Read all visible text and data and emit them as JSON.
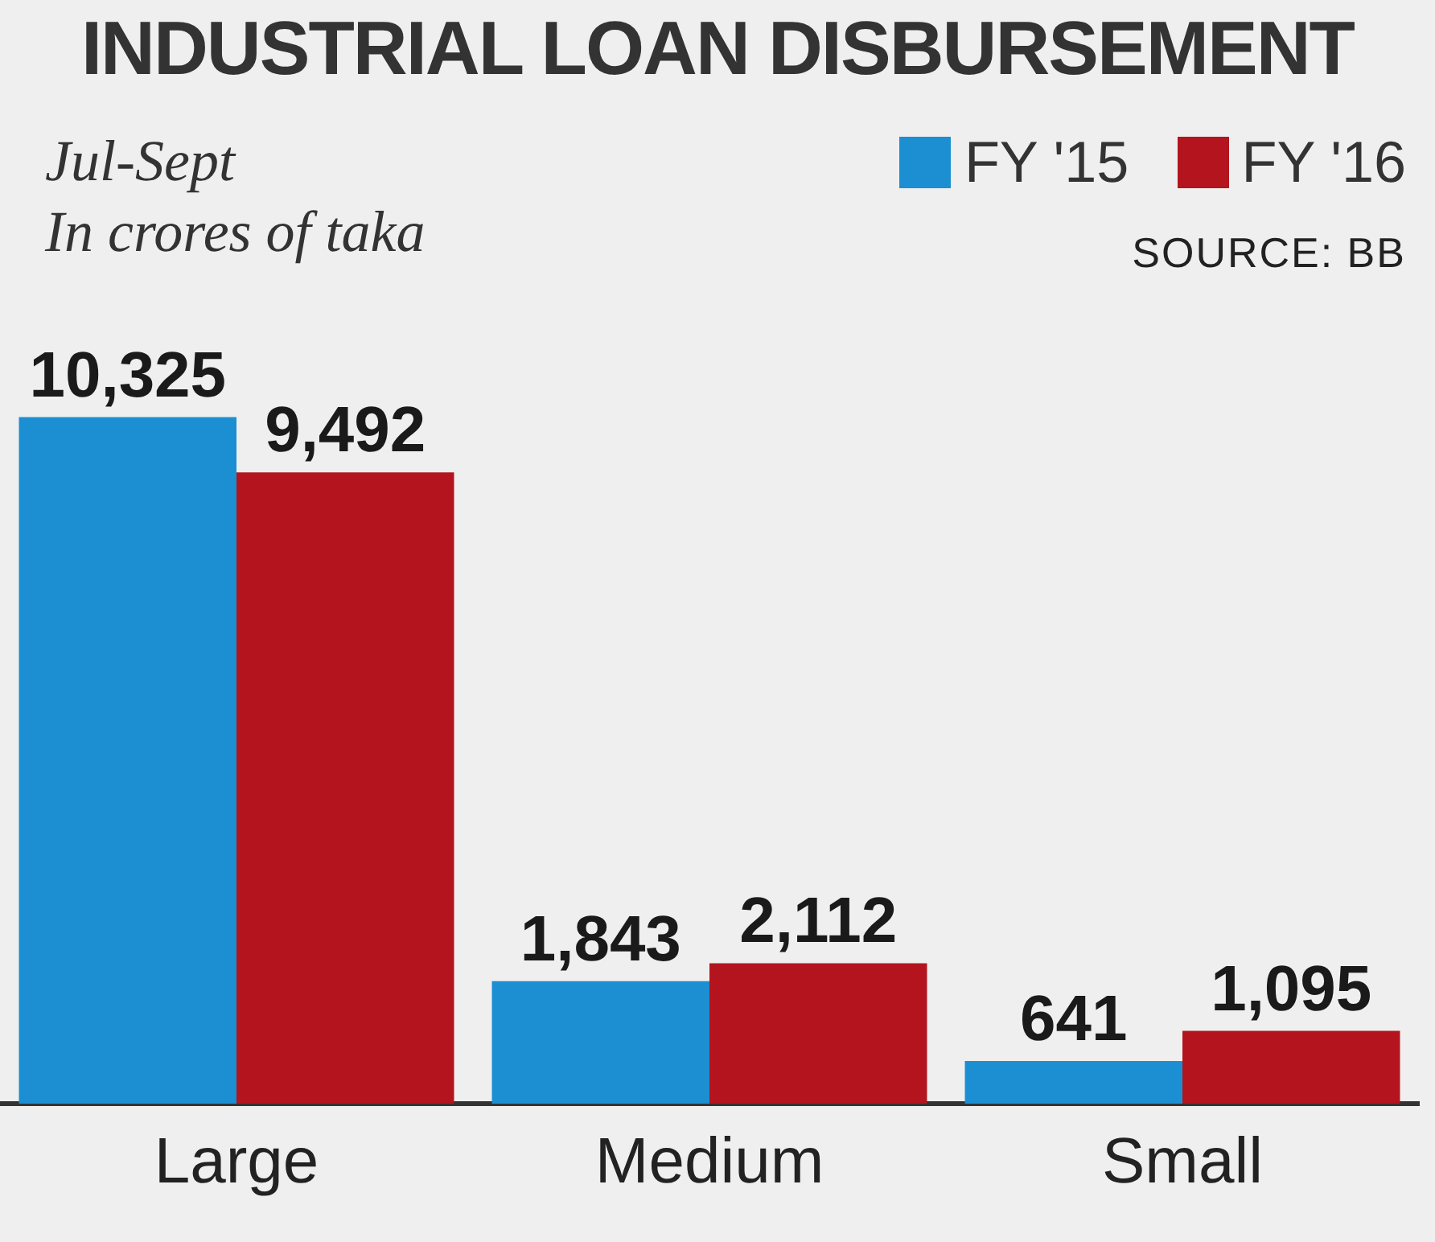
{
  "chart_data": {
    "type": "bar",
    "title": "INDUSTRIAL LOAN DISBURSEMENT",
    "subtitle": "Jul-Sept",
    "ylabel": "In crores of taka",
    "annotations": [
      "SOURCE: BB"
    ],
    "categories": [
      "Large",
      "Medium",
      "Small"
    ],
    "series": [
      {
        "name": "FY '15",
        "color": "#1b8fd2",
        "values": [
          10325,
          1843,
          641
        ],
        "value_labels": [
          "10,325",
          "1,843",
          "641"
        ]
      },
      {
        "name": "FY '16",
        "color": "#b3141d",
        "values": [
          9492,
          2112,
          1095
        ],
        "value_labels": [
          "9,492",
          "2,112",
          "1,095"
        ]
      }
    ],
    "grid": false,
    "legend": "top right"
  }
}
